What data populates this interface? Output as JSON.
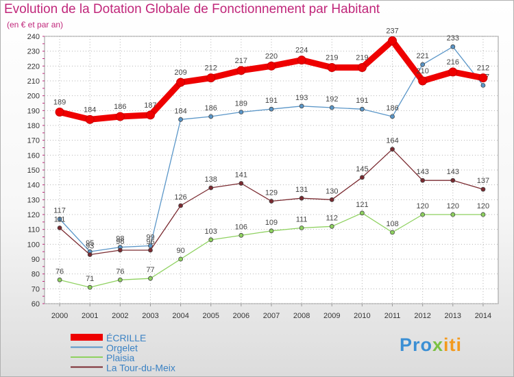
{
  "header": {
    "title": "Evolution de la Dotation Globale de Fonctionnement par Habitant",
    "subtitle": "(en € et par an)"
  },
  "logo": {
    "part1": "Pro",
    "part2": "x",
    "part3": "iti"
  },
  "colors": {
    "title": "#c0267a",
    "axis_text": "#333333",
    "grid": "#b4b4b4"
  },
  "chart_data": {
    "type": "line",
    "title": "Evolution de la Dotation Globale de Fonctionnement par Habitant",
    "subtitle": "(en € et par an)",
    "xlabel": "",
    "ylabel": "",
    "ylim": [
      60,
      240
    ],
    "yticks": [
      60,
      70,
      80,
      90,
      100,
      110,
      120,
      130,
      140,
      150,
      160,
      170,
      180,
      190,
      200,
      210,
      220,
      230,
      240
    ],
    "categories": [
      "2000",
      "2001",
      "2002",
      "2003",
      "2004",
      "2005",
      "2006",
      "2007",
      "2008",
      "2009",
      "2010",
      "2011",
      "2012",
      "2013",
      "2014"
    ],
    "legend_position": "bottom-left",
    "series": [
      {
        "name": "ÉCRILLE",
        "color": "#ee0000",
        "bold": true,
        "values": [
          189,
          184,
          186,
          187,
          209,
          212,
          217,
          220,
          224,
          219,
          219,
          237,
          210,
          216,
          212
        ],
        "labels": [
          "189",
          "184",
          "186",
          "187",
          "209",
          "212",
          "217",
          "220",
          "224",
          "219",
          "219",
          "237",
          "210",
          "216",
          "212"
        ]
      },
      {
        "name": "Orgelet",
        "color": "#5a96c8",
        "values": [
          117,
          95,
          98,
          99,
          184,
          186,
          189,
          191,
          193,
          192,
          191,
          186,
          221,
          233,
          207
        ],
        "labels": [
          "117",
          "95",
          "98",
          "99",
          "184",
          "186",
          "189",
          "191",
          "193",
          "192",
          "191",
          "186",
          "221",
          "233",
          "207"
        ]
      },
      {
        "name": "Plaisia",
        "color": "#8ed15f",
        "values": [
          76,
          71,
          76,
          77,
          90,
          103,
          106,
          109,
          111,
          112,
          121,
          108,
          120,
          120,
          120
        ],
        "labels": [
          "76",
          "71",
          "76",
          "77",
          "90",
          "103",
          "106",
          "109",
          "111",
          "112",
          "121",
          "108",
          "120",
          "120",
          "120"
        ]
      },
      {
        "name": "La Tour-du-Meix",
        "color": "#7a2a30",
        "values": [
          111,
          93,
          96,
          96,
          126,
          138,
          141,
          129,
          131,
          130,
          145,
          164,
          143,
          143,
          137
        ],
        "labels": [
          "111",
          "93",
          "96",
          "96",
          "126",
          "138",
          "141",
          "129",
          "131",
          "130",
          "145",
          "164",
          "143",
          "143",
          "137"
        ]
      }
    ]
  }
}
